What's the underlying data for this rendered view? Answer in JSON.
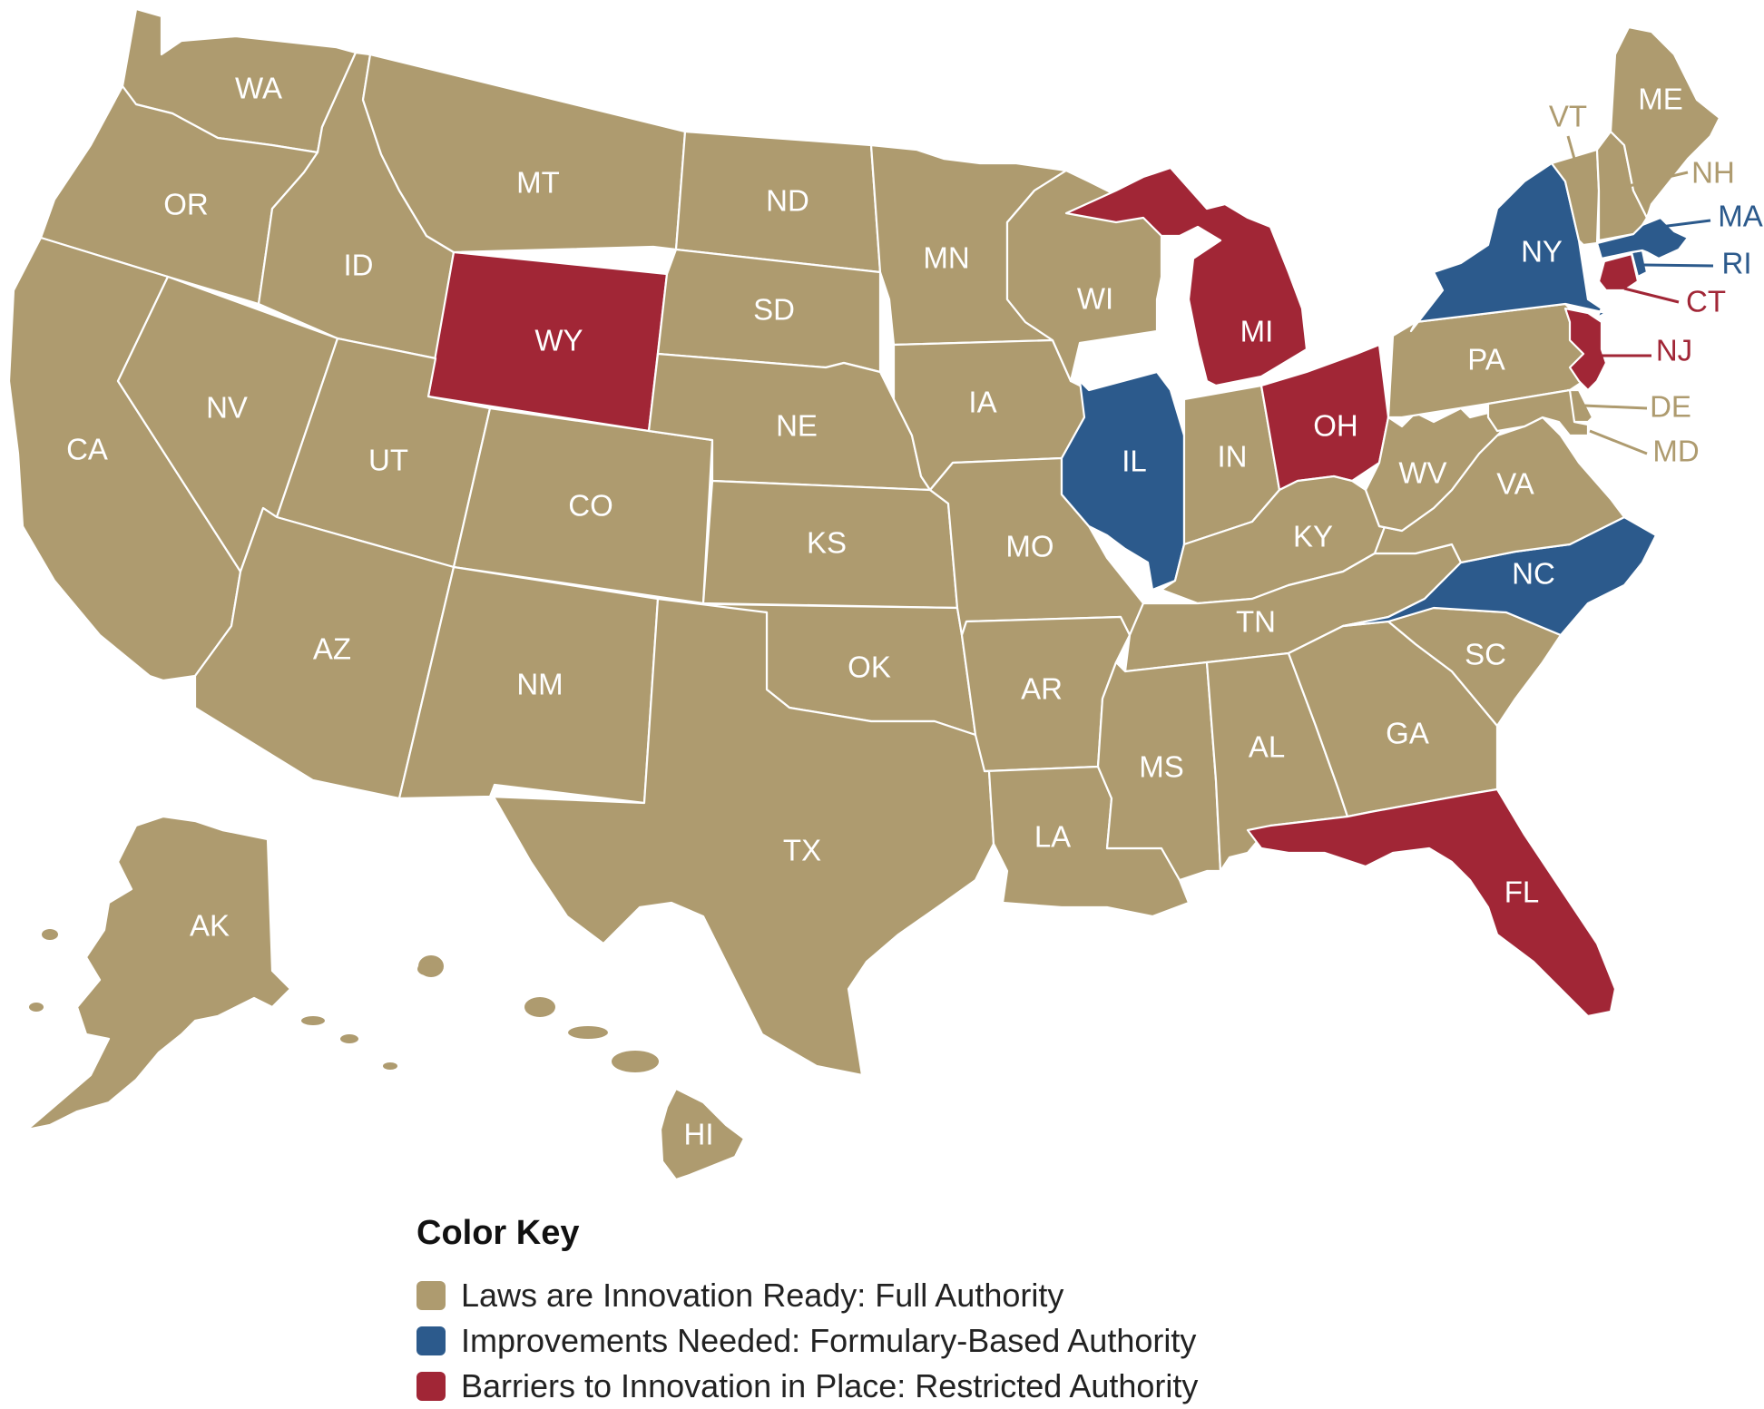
{
  "colors": {
    "full": "#ae9b6f",
    "formulary": "#2c5a8c",
    "restricted": "#a12636",
    "outline": "#ffffff"
  },
  "legend": {
    "title": "Color Key",
    "items": [
      {
        "key": "full",
        "label": "Laws are Innovation Ready: Full Authority"
      },
      {
        "key": "formulary",
        "label": "Improvements Needed: Formulary-Based Authority"
      },
      {
        "key": "restricted",
        "label": "Barriers to Innovation in Place: Restricted Authority"
      }
    ]
  },
  "states": {
    "WA": "full",
    "OR": "full",
    "CA": "full",
    "ID": "full",
    "NV": "full",
    "MT": "full",
    "WY": "restricted",
    "UT": "full",
    "AZ": "full",
    "CO": "full",
    "NM": "full",
    "ND": "full",
    "SD": "full",
    "NE": "full",
    "KS": "full",
    "OK": "full",
    "TX": "full",
    "MN": "full",
    "IA": "full",
    "MO": "full",
    "AR": "full",
    "LA": "full",
    "WI": "full",
    "IL": "formulary",
    "MI": "restricted",
    "IN": "full",
    "OH": "restricted",
    "KY": "full",
    "TN": "full",
    "MS": "full",
    "AL": "full",
    "GA": "full",
    "FL": "restricted",
    "SC": "full",
    "NC": "formulary",
    "VA": "full",
    "WV": "full",
    "PA": "full",
    "NY": "formulary",
    "NJ": "restricted",
    "DE": "full",
    "MD": "full",
    "CT": "restricted",
    "RI": "formulary",
    "MA": "formulary",
    "VT": "full",
    "NH": "full",
    "ME": "full",
    "AK": "full",
    "HI": "full"
  }
}
